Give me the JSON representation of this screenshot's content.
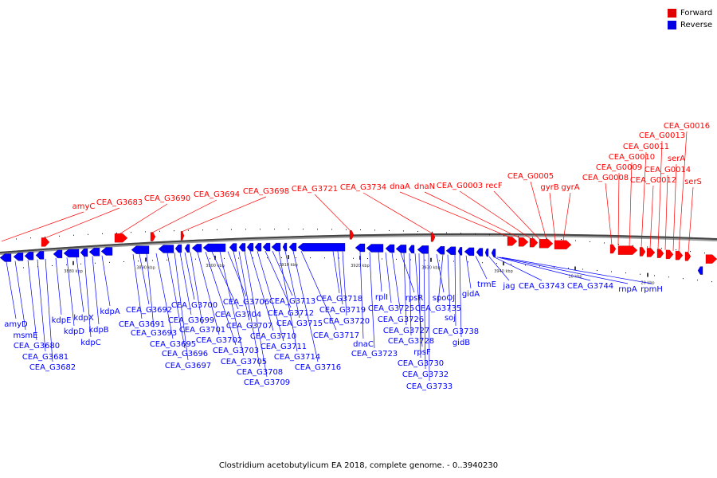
{
  "legend": {
    "forward_label": "Forward",
    "reverse_label": "Reverse",
    "forward_color": "#ff0000",
    "reverse_color": "#0000ff"
  },
  "caption": "Clostridium acetobutylicum EA 2018, complete genome. - 0..3940230",
  "ticks": [
    "3880 kbp",
    "3890 kbp",
    "3900 kbp",
    "3910 kbp",
    "3920 kbp",
    "3930 kbp",
    "3940 kbp",
    "10 kbp",
    "20 kbp"
  ],
  "forward_genes": [
    "amyC",
    "CEA_G3683",
    "CEA_G3690",
    "CEA_G3694",
    "CEA_G3698",
    "CEA_G3721",
    "CEA_G3734",
    "dnaA",
    "dnaN",
    "CEA_G0003",
    "recF",
    "CEA_G0005",
    "gyrB",
    "gyrA",
    "CEA_G0008",
    "CEA_G0009",
    "CEA_G0010",
    "CEA_G0011",
    "CEA_G0012",
    "CEA_G0013",
    "CEA_G0014",
    "serA",
    "CEA_G0016",
    "serS"
  ],
  "reverse_genes": [
    "amyD",
    "msmE",
    "CEA_G3680",
    "CEA_G3681",
    "CEA_G3682",
    "kdpE",
    "kdpD",
    "kdpX",
    "kdpC",
    "kdpB",
    "kdpA",
    "CEA_G3691",
    "CEA_G3692",
    "CEA_G3693",
    "CEA_G3695",
    "CEA_G3696",
    "CEA_G3697",
    "CEA_G3699",
    "CEA_G3700",
    "CEA_G3701",
    "CEA_G3702",
    "CEA_G3703",
    "CEA_G3704",
    "CEA_G3705",
    "CEA_G3706",
    "CEA_G3707",
    "CEA_G3708",
    "CEA_G3709",
    "CEA_G3710",
    "CEA_G3711",
    "CEA_G3712",
    "CEA_G3713",
    "CEA_G3714",
    "CEA_G3715",
    "CEA_G3716",
    "CEA_G3717",
    "CEA_G3718",
    "CEA_G3719",
    "CEA_G3720",
    "dnaC",
    "CEA_G3723",
    "rplI",
    "CEA_G3725",
    "CEA_G3726",
    "rpsR",
    "CEA_G3727",
    "CEA_G3728",
    "rpsF",
    "CEA_G3730",
    "CEA_G3732",
    "CEA_G3733",
    "spoOJ",
    "CEA_G3735",
    "soj",
    "CEA_G3738",
    "gidB",
    "gidA",
    "trmE",
    "jag",
    "CEA_G3743",
    "CEA_G3744",
    "rnpA",
    "rpmH"
  ]
}
